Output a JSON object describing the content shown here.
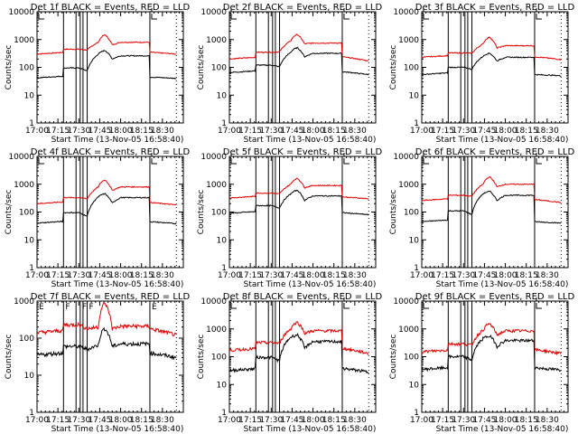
{
  "chart_data": {
    "type": "line",
    "layout": "3x3 grid",
    "shared": {
      "title_template": "Det {det}f BLACK = Events, RED = LLD",
      "xlabel": "Start Time (13-Nov-05 16:58:40)",
      "ylabel": "Counts/sec",
      "x_ticks": [
        "17:00",
        "17:15",
        "17:30",
        "17:45",
        "18:00",
        "18:15",
        "18:30"
      ],
      "x_range_minutes_after_1700": [
        0,
        105
      ],
      "y_scale": "log",
      "series_names": [
        "Events",
        "LLD"
      ],
      "series_colors": {
        "Events": "#000000",
        "LLD": "#e00000"
      },
      "marker_lines": {
        "solid_minutes": [
          19,
          81
        ],
        "thin_minutes": [
          28,
          31,
          33,
          36
        ],
        "dotted_minutes": [
          100
        ]
      }
    },
    "panels": [
      {
        "det": "1",
        "title": "Det 1f BLACK = Events, RED = LLD",
        "y_ticks": [
          "1",
          "10",
          "100",
          "1000",
          "10000"
        ],
        "ylim": [
          1,
          10000
        ],
        "flags": [
          {
            "min": 0,
            "label": "L"
          },
          {
            "min": 81,
            "label": "L"
          }
        ],
        "events": {
          "pre": 42,
          "mid": 95,
          "dip": 75,
          "rise": 300,
          "peak": 400,
          "post_peak": 200,
          "plateau": 260,
          "after": 45,
          "end": 40
        },
        "lld": {
          "pre": 300,
          "mid": 450,
          "dip": 420,
          "rise": 800,
          "peak": 1450,
          "post_peak": 650,
          "plateau": 800,
          "after": 350,
          "end": 300
        }
      },
      {
        "det": "2",
        "title": "Det 2f BLACK = Events, RED = LLD",
        "y_ticks": [
          "1",
          "10",
          "100",
          "1000",
          "10000"
        ],
        "ylim": [
          1,
          10000
        ],
        "flags": [
          {
            "min": 0,
            "label": "L"
          },
          {
            "min": 81,
            "label": "L"
          }
        ],
        "events": {
          "pre": 65,
          "mid": 120,
          "dip": 105,
          "rise": 350,
          "peak": 500,
          "post_peak": 240,
          "plateau": 320,
          "after": 70,
          "end": 55
        },
        "lld": {
          "pre": 200,
          "mid": 350,
          "dip": 360,
          "rise": 900,
          "peak": 1500,
          "post_peak": 700,
          "plateau": 750,
          "after": 240,
          "end": 170
        }
      },
      {
        "det": "3",
        "title": "Det 3f BLACK = Events, RED = LLD",
        "y_ticks": [
          "1",
          "10",
          "100",
          "1000",
          "10000"
        ],
        "ylim": [
          1,
          10000
        ],
        "flags": [
          {
            "min": 0,
            "label": "L"
          },
          {
            "min": 81,
            "label": "L"
          }
        ],
        "events": {
          "pre": 55,
          "mid": 100,
          "dip": 85,
          "rise": 250,
          "peak": 320,
          "post_peak": 170,
          "plateau": 230,
          "after": 55,
          "end": 50
        },
        "lld": {
          "pre": 230,
          "mid": 330,
          "dip": 320,
          "rise": 700,
          "peak": 1200,
          "post_peak": 500,
          "plateau": 600,
          "after": 240,
          "end": 190
        }
      },
      {
        "det": "4",
        "title": "Det 4f BLACK = Events, RED = LLD",
        "y_ticks": [
          "1",
          "10",
          "100",
          "1000",
          "10000"
        ],
        "ylim": [
          1,
          10000
        ],
        "flags": [
          {
            "min": 0,
            "label": "L"
          },
          {
            "min": 81,
            "label": "L"
          }
        ],
        "events": {
          "pre": 40,
          "mid": 95,
          "dip": 70,
          "rise": 350,
          "peak": 450,
          "post_peak": 210,
          "plateau": 330,
          "after": 45,
          "end": 38
        },
        "lld": {
          "pre": 200,
          "mid": 330,
          "dip": 300,
          "rise": 800,
          "peak": 1400,
          "post_peak": 600,
          "plateau": 800,
          "after": 220,
          "end": 180
        }
      },
      {
        "det": "5",
        "title": "Det 5f BLACK = Events, RED = LLD",
        "y_ticks": [
          "1",
          "10",
          "100",
          "1000",
          "10000"
        ],
        "ylim": [
          1,
          10000
        ],
        "flags": [
          {
            "min": 0,
            "label": "L"
          },
          {
            "min": 81,
            "label": "L"
          }
        ],
        "events": {
          "pre": 90,
          "mid": 170,
          "dip": 140,
          "rise": 450,
          "peak": 600,
          "post_peak": 260,
          "plateau": 380,
          "after": 95,
          "end": 80
        },
        "lld": {
          "pre": 320,
          "mid": 480,
          "dip": 450,
          "rise": 1000,
          "peak": 1600,
          "post_peak": 750,
          "plateau": 900,
          "after": 350,
          "end": 300
        }
      },
      {
        "det": "6",
        "title": "Det 6f BLACK = Events, RED = LLD",
        "y_ticks": [
          "1",
          "10",
          "100",
          "1000",
          "10000"
        ],
        "ylim": [
          1,
          10000
        ],
        "flags": [
          {
            "min": 0,
            "label": "L"
          },
          {
            "min": 81,
            "label": "L"
          }
        ],
        "events": {
          "pre": 45,
          "mid": 110,
          "dip": 80,
          "rise": 450,
          "peak": 550,
          "post_peak": 260,
          "plateau": 400,
          "after": 45,
          "end": 40
        },
        "lld": {
          "pre": 260,
          "mid": 400,
          "dip": 370,
          "rise": 1000,
          "peak": 1800,
          "post_peak": 800,
          "plateau": 1000,
          "after": 280,
          "end": 220
        }
      },
      {
        "det": "7",
        "title": "Det 7f BLACK = Events, RED = LLD",
        "y_ticks": [
          "1",
          "10",
          "100",
          "1000"
        ],
        "ylim": [
          1,
          1000
        ],
        "flags": [
          {
            "min": 0,
            "label": "E"
          },
          {
            "min": 19,
            "label": "F"
          },
          {
            "min": 31,
            "label": "F"
          },
          {
            "min": 36,
            "label": "F"
          },
          {
            "min": 81,
            "label": "E"
          }
        ],
        "events": {
          "pre": 35,
          "mid": 60,
          "dip": 50,
          "rise": 65,
          "peak": 180,
          "post_peak": 60,
          "plateau": 70,
          "after": 40,
          "end": 30
        },
        "lld": {
          "pre": 140,
          "mid": 230,
          "dip": 180,
          "rise": 200,
          "peak": 850,
          "post_peak": 180,
          "plateau": 210,
          "after": 180,
          "end": 120
        }
      },
      {
        "det": "8",
        "title": "Det 8f BLACK = Events, RED = LLD",
        "y_ticks": [
          "1",
          "10",
          "100",
          "1000",
          "10000"
        ],
        "ylim": [
          1,
          10000
        ],
        "flags": [
          {
            "min": 0,
            "label": "L"
          },
          {
            "min": 81,
            "label": "L"
          }
        ],
        "events": {
          "pre": 32,
          "mid": 95,
          "dip": 70,
          "rise": 500,
          "peak": 600,
          "post_peak": 200,
          "plateau": 350,
          "after": 38,
          "end": 28
        },
        "lld": {
          "pre": 170,
          "mid": 320,
          "dip": 300,
          "rise": 1000,
          "peak": 1700,
          "post_peak": 700,
          "plateau": 850,
          "after": 200,
          "end": 130
        }
      },
      {
        "det": "9",
        "title": "Det 9f BLACK = Events, RED = LLD",
        "y_ticks": [
          "1",
          "10",
          "100",
          "1000",
          "10000"
        ],
        "ylim": [
          1,
          10000
        ],
        "flags": [
          {
            "min": 0,
            "label": "L"
          },
          {
            "min": 81,
            "label": "L"
          }
        ],
        "events": {
          "pre": 35,
          "mid": 100,
          "dip": 75,
          "rise": 450,
          "peak": 550,
          "post_peak": 230,
          "plateau": 380,
          "after": 40,
          "end": 33
        },
        "lld": {
          "pre": 150,
          "mid": 290,
          "dip": 260,
          "rise": 900,
          "peak": 1500,
          "post_peak": 600,
          "plateau": 850,
          "after": 180,
          "end": 130
        }
      }
    ]
  }
}
